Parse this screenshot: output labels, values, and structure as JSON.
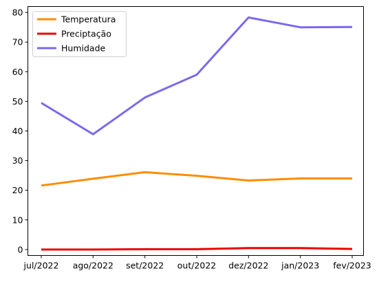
{
  "chart_data": {
    "type": "line",
    "categories": [
      "jul/2022",
      "ago/2022",
      "set/2022",
      "out/2022",
      "dez/2022",
      "jan/2023",
      "fev/2023"
    ],
    "series": [
      {
        "name": "Temperatura",
        "color": "#ff8c00",
        "values": [
          21.6,
          23.9,
          26.1,
          24.9,
          23.3,
          24.0,
          24.0
        ]
      },
      {
        "name": "Preciptação",
        "color": "#ee0000",
        "values": [
          0.0,
          0.0,
          0.1,
          0.1,
          0.5,
          0.5,
          0.2
        ]
      },
      {
        "name": "Humidade",
        "color": "#7b68ee",
        "values": [
          49.5,
          38.9,
          51.3,
          59.0,
          78.3,
          75.0,
          75.1
        ]
      }
    ],
    "yticks": [
      0,
      10,
      20,
      30,
      40,
      50,
      60,
      70,
      80
    ],
    "ylim": [
      -2,
      82
    ],
    "grid": false,
    "legend": "top-left",
    "title": "",
    "xlabel": "",
    "ylabel": ""
  }
}
